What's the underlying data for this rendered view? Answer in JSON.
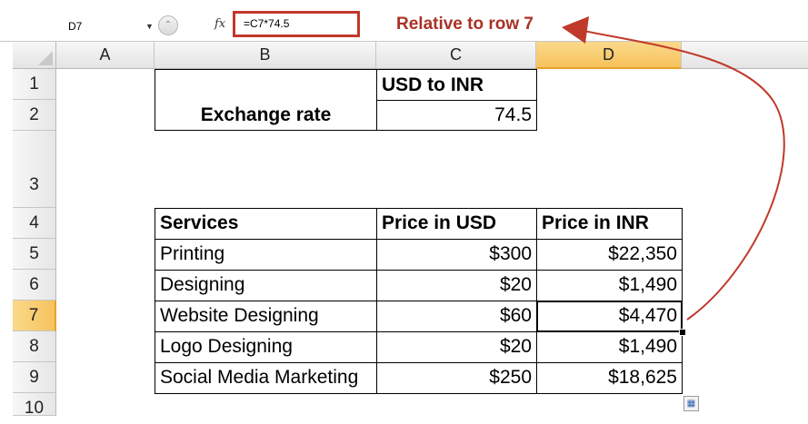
{
  "formula_bar": {
    "name_box": "D7",
    "fx_label": "fx",
    "formula": "=C7*74.5"
  },
  "annotation": {
    "text": "Relative to row 7",
    "color": "#a93226"
  },
  "columns": [
    "A",
    "B",
    "C",
    "D"
  ],
  "selected_column": "D",
  "rows": [
    "1",
    "2",
    "3",
    "4",
    "5",
    "6",
    "7",
    "8",
    "9",
    "10"
  ],
  "selected_row": "7",
  "exchange": {
    "header": "USD to INR",
    "label": "Exchange rate",
    "value": "74.5"
  },
  "table": {
    "headers": [
      "Services",
      "Price in USD",
      "Price in INR"
    ],
    "rows": [
      [
        "Printing",
        "$300",
        "$22,350"
      ],
      [
        "Designing",
        "$20",
        "$1,490"
      ],
      [
        "Website Designing",
        "$60",
        "$4,470"
      ],
      [
        "Logo Designing",
        "$20",
        "$1,490"
      ],
      [
        "Social Media Marketing",
        "$250",
        "$18,625"
      ]
    ]
  },
  "colors": {
    "selection_header": "#f6c25c",
    "annotation_box": "#c0392b"
  }
}
